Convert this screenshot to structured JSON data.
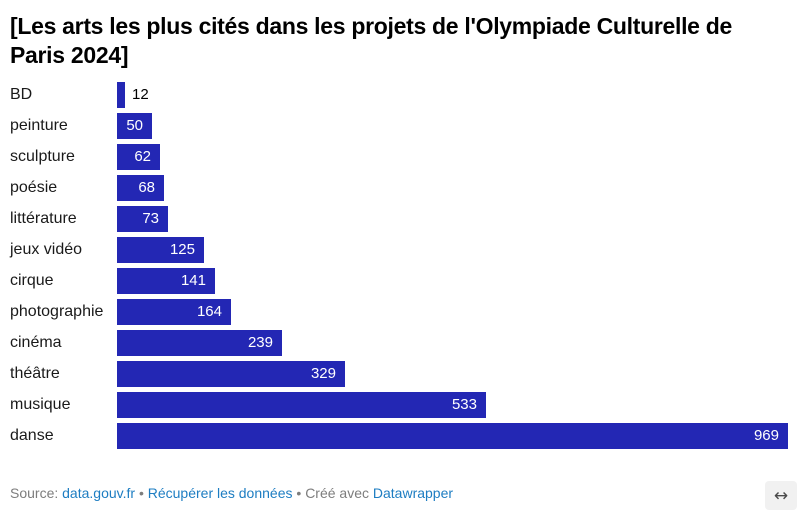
{
  "chart_data": {
    "type": "bar",
    "orientation": "horizontal",
    "title": "[Les arts les plus cités dans les projets de l'Olympiade Culturelle de Paris 2024]",
    "categories": [
      "BD",
      "peinture",
      "sculpture",
      "poésie",
      "littérature",
      "jeux vidéo",
      "cirque",
      "photographie",
      "cinéma",
      "théâtre",
      "musique",
      "danse"
    ],
    "values": [
      12,
      50,
      62,
      68,
      73,
      125,
      141,
      164,
      239,
      329,
      533,
      969
    ],
    "xlim": [
      0,
      969
    ],
    "grid": "off",
    "legend": "none",
    "bar_color": "#2327b4",
    "value_label_inside_color": "#ffffff",
    "value_label_outside_color": "#000000",
    "category_label_color": "#1a1a1a"
  },
  "footer": {
    "source_label": "Source:",
    "source_link": "data.gouv.fr",
    "separator": "•",
    "data_link": "Récupérer les données",
    "created_label": "Créé avec",
    "tool_link": "Datawrapper",
    "link_color": "#1d7dc2",
    "resize_icon": "↔"
  }
}
